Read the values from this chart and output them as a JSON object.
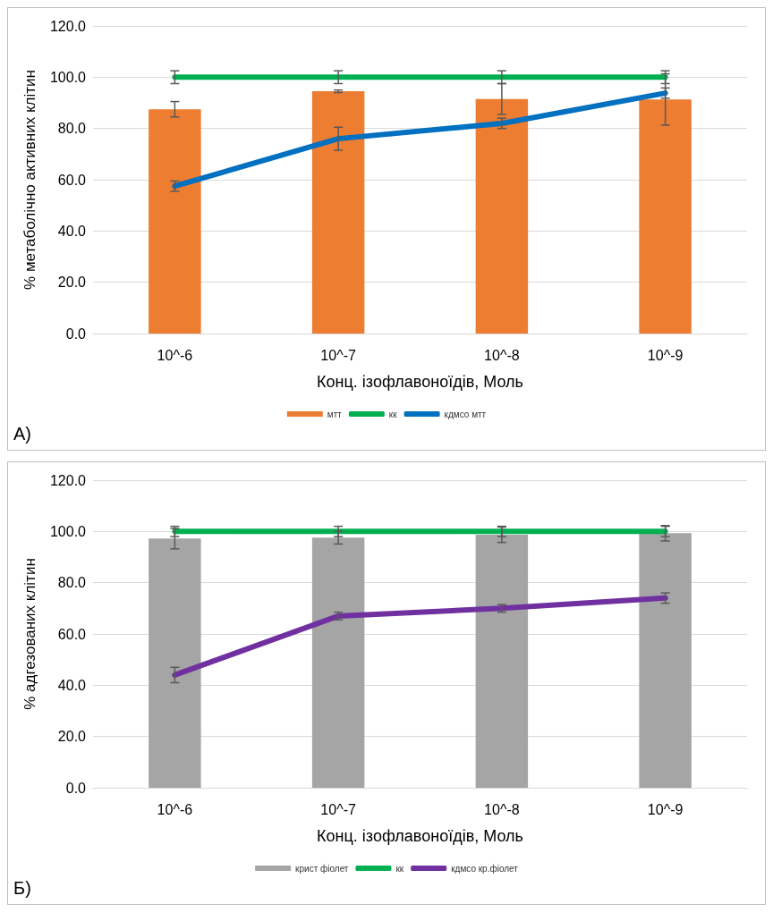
{
  "chart_data": [
    {
      "type": "bar",
      "categories": [
        "10^-6",
        "10^-7",
        "10^-8",
        "10^-9"
      ],
      "xlabel": "Конц. ізофлавоноїдів, Моль",
      "ylabel": "% метаболічно активних клітин",
      "ylim": [
        0,
        120
      ],
      "yticks": [
        {
          "value": 0,
          "label": "0.0"
        },
        {
          "value": 20,
          "label": "20.0"
        },
        {
          "value": 40,
          "label": "40.0"
        },
        {
          "value": 60,
          "label": "60.0"
        },
        {
          "value": 80,
          "label": "80.0"
        },
        {
          "value": 100,
          "label": "100.0"
        },
        {
          "value": 120,
          "label": "120.0"
        }
      ],
      "grid": "y",
      "legend": "bottom",
      "marker": "none",
      "annotations": [
        "А)"
      ],
      "series": [
        {
          "name": "мтт",
          "color": "#ed7d31",
          "values": [
            87.5,
            94.5,
            91.5,
            91.3
          ],
          "errors": [
            3,
            0.5,
            6,
            10
          ]
        },
        {
          "name": "кк",
          "type": "line",
          "color": "#00b050",
          "values": [
            100,
            100,
            100,
            100
          ],
          "errors": [
            2.5,
            2.5,
            2.5,
            2.5
          ]
        },
        {
          "name": "кдмсо мтт",
          "type": "line",
          "color": "#0070c0",
          "values": [
            57.5,
            76,
            82,
            93.8
          ],
          "errors": [
            2,
            4.5,
            2,
            2
          ]
        }
      ]
    },
    {
      "type": "bar",
      "categories": [
        "10^-6",
        "10^-7",
        "10^-8",
        "10^-9"
      ],
      "xlabel": "Конц. ізофлавоноїдів, Моль",
      "ylabel": "% адгезованих клітин",
      "ylim": [
        0,
        120
      ],
      "yticks": [
        {
          "value": 0,
          "label": "0.0"
        },
        {
          "value": 20,
          "label": "20.0"
        },
        {
          "value": 40,
          "label": "40.0"
        },
        {
          "value": 60,
          "label": "60.0"
        },
        {
          "value": 80,
          "label": "80.0"
        },
        {
          "value": 100,
          "label": "100.0"
        },
        {
          "value": 120,
          "label": "120.0"
        }
      ],
      "grid": "y",
      "legend": "bottom",
      "marker": "none",
      "annotations": [
        "Б)"
      ],
      "series": [
        {
          "name": "крист фіолет",
          "color": "#a5a5a5",
          "values": [
            97.2,
            97.6,
            98.7,
            99.3
          ],
          "errors": [
            4,
            2.5,
            3,
            3
          ]
        },
        {
          "name": "кк",
          "type": "line",
          "color": "#00b050",
          "values": [
            100,
            100,
            100,
            100
          ],
          "errors": [
            2,
            2,
            2,
            2
          ]
        },
        {
          "name": "кдмсо кр.фіолет",
          "type": "line",
          "color": "#7030a0",
          "values": [
            44,
            67,
            70,
            74
          ],
          "errors": [
            3,
            1.5,
            1.5,
            2
          ]
        }
      ]
    }
  ]
}
